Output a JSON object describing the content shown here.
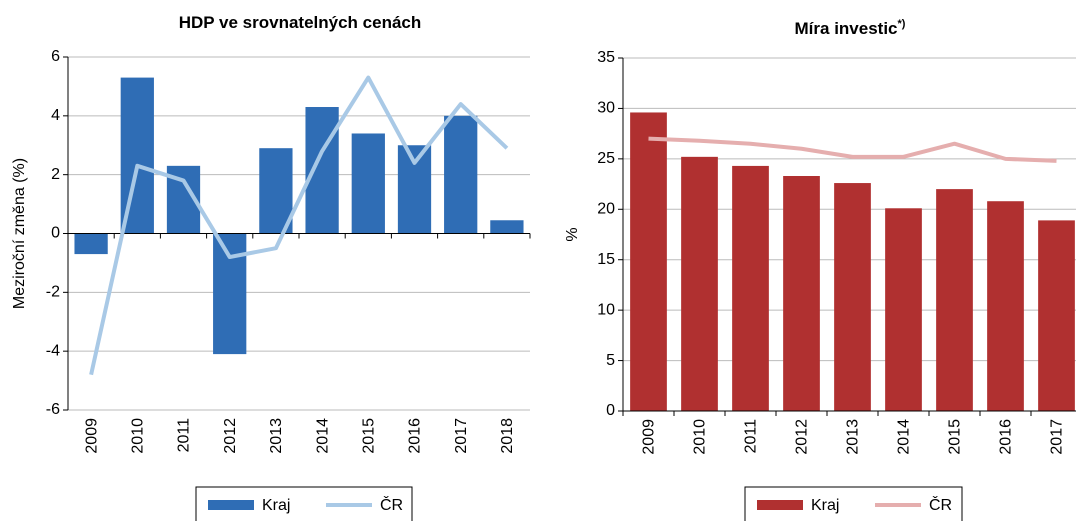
{
  "chart_data": [
    {
      "type": "combo",
      "title": "HDP ve srovnatelných cenách",
      "y_label": "Meziroční změna (%)",
      "categories": [
        "2009",
        "2010",
        "2011",
        "2012",
        "2013",
        "2014",
        "2015",
        "2016",
        "2017",
        "2018"
      ],
      "series": [
        {
          "name": "Kraj",
          "type": "bar",
          "color": "#2f6db5",
          "values": [
            -0.7,
            5.3,
            2.3,
            -4.1,
            2.9,
            4.3,
            3.4,
            3.0,
            4.0,
            0.45
          ]
        },
        {
          "name": "ČR",
          "type": "line",
          "color": "#a9c9e6",
          "values": [
            -4.8,
            2.3,
            1.8,
            -0.8,
            -0.5,
            2.8,
            5.3,
            2.4,
            4.4,
            2.9
          ]
        }
      ],
      "ylim": [
        -6,
        6
      ],
      "yticks": [
        -6,
        -4,
        -2,
        0,
        2,
        4,
        6
      ],
      "grid": true,
      "legend": "bottom"
    },
    {
      "type": "combo",
      "title": "Míra investic",
      "title_sup": "*)",
      "y_label": "%",
      "categories": [
        "2009",
        "2010",
        "2011",
        "2012",
        "2013",
        "2014",
        "2015",
        "2016",
        "2017"
      ],
      "series": [
        {
          "name": "Kraj",
          "type": "bar",
          "color": "#b03030",
          "values": [
            29.6,
            25.2,
            24.3,
            23.3,
            22.6,
            20.1,
            22.0,
            20.8,
            18.9
          ]
        },
        {
          "name": "ČR",
          "type": "line",
          "color": "#e5aeae",
          "values": [
            27.0,
            26.8,
            26.5,
            26.0,
            25.2,
            25.2,
            26.5,
            25.0,
            24.8
          ]
        }
      ],
      "ylim": [
        0,
        35
      ],
      "yticks": [
        0,
        5,
        10,
        15,
        20,
        25,
        30,
        35
      ],
      "grid": true,
      "legend": "bottom"
    }
  ]
}
